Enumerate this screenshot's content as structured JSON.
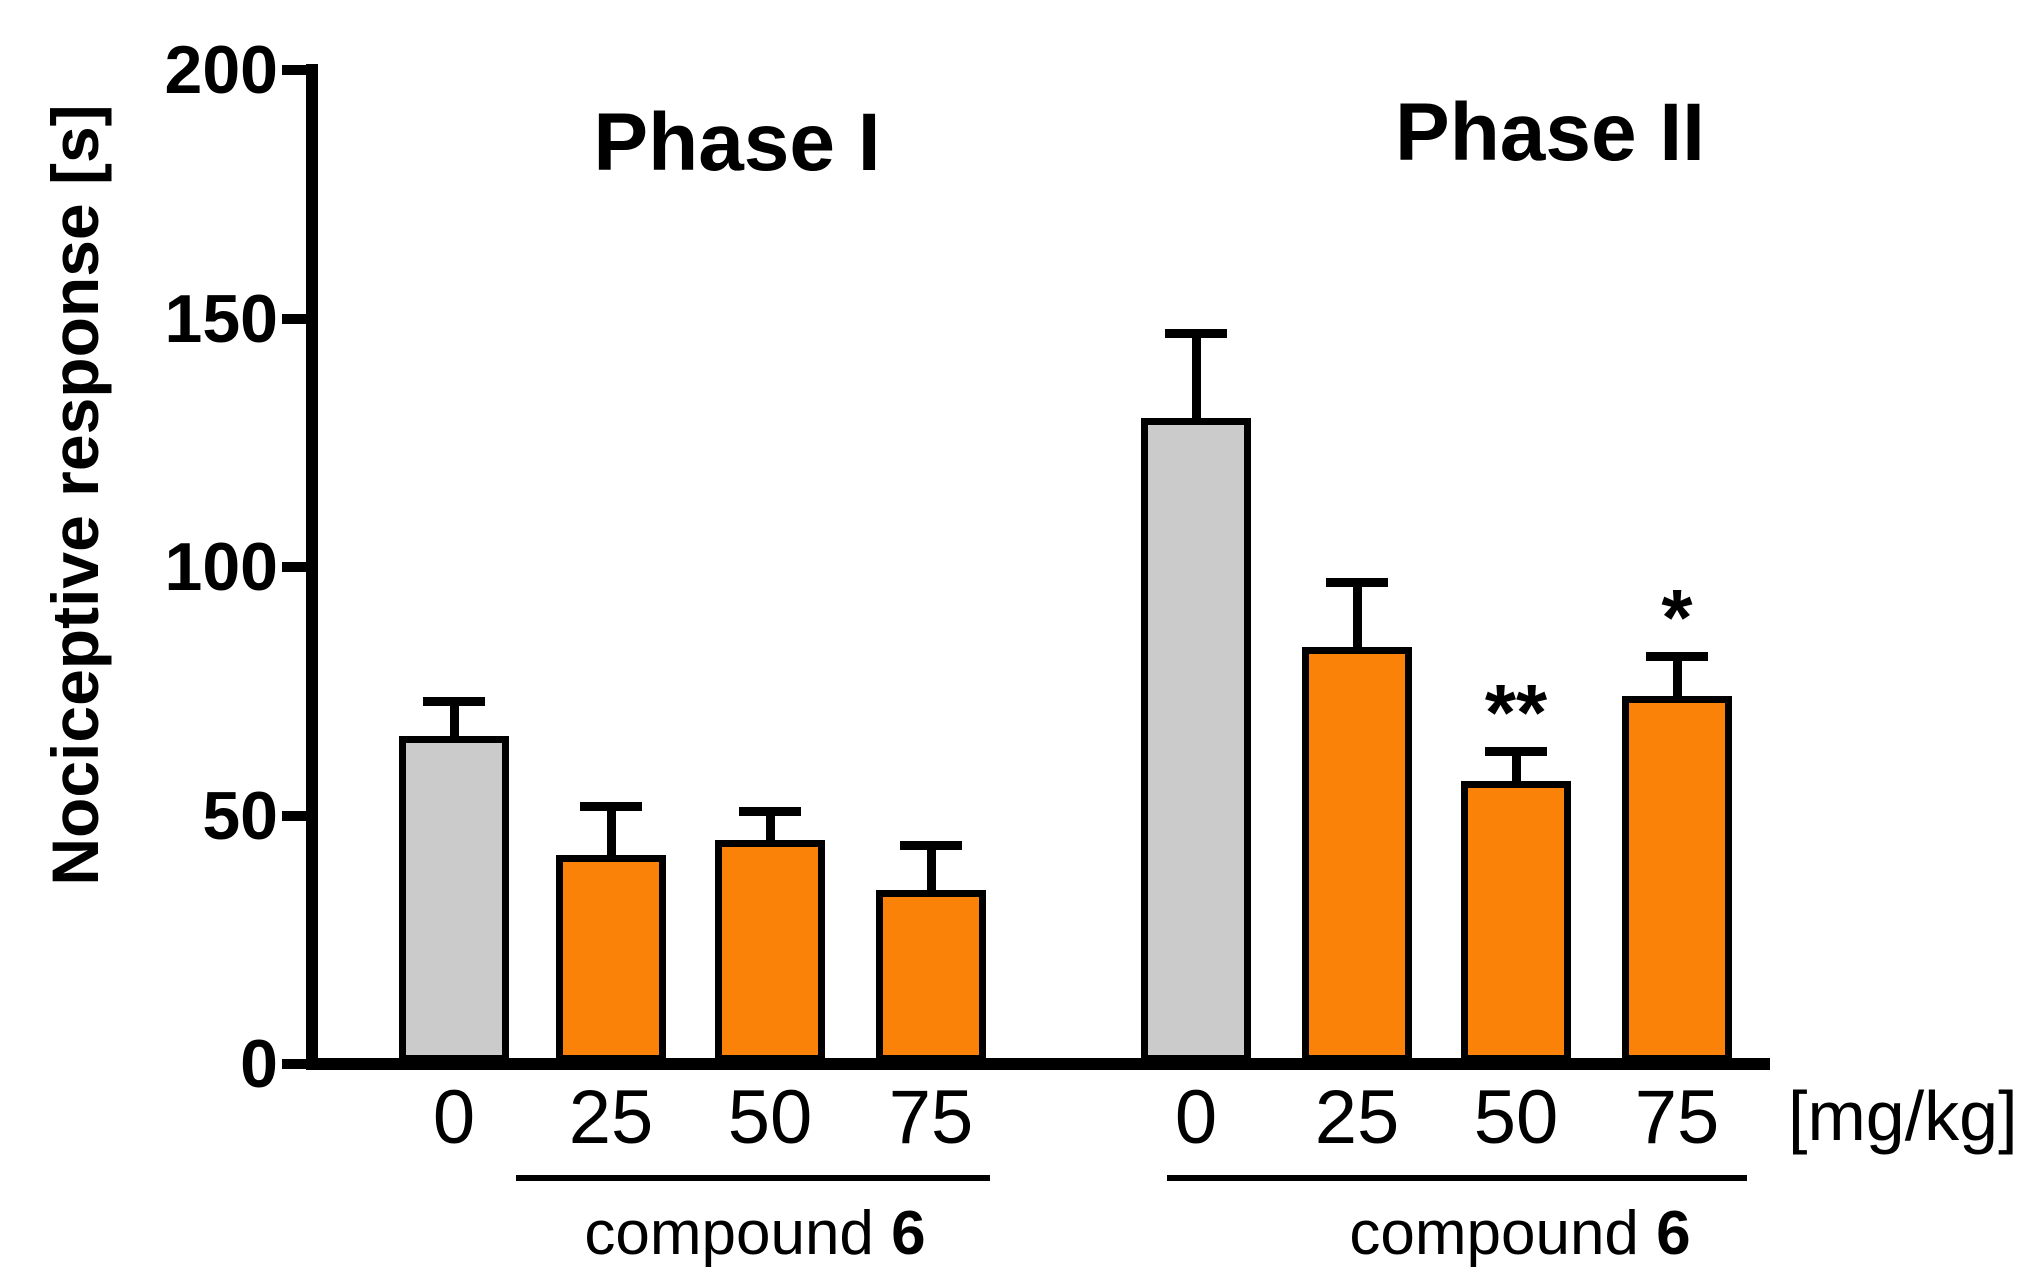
{
  "chart_data": {
    "type": "bar",
    "title": "",
    "ylabel": "Nociceptive response [s]",
    "x_unit_label": "[mg/kg]",
    "ylim": [
      0,
      200
    ],
    "yticks": [
      "0",
      "50",
      "100",
      "150",
      "200"
    ],
    "grid": false,
    "legend": null,
    "error_bars": "upper only, capped",
    "bar_style": {
      "control_color": "#CBCBCB",
      "treatment_color": "#FA8208",
      "outline_color": "#000000"
    },
    "groups": [
      {
        "name": "Phase I",
        "categories": [
          "0",
          "25",
          "50",
          "75"
        ],
        "values": [
          66,
          42,
          45,
          35
        ],
        "errors_plus": [
          7,
          10,
          6,
          9
        ],
        "significance": [
          "",
          "",
          "",
          ""
        ],
        "bar_roles": [
          "control",
          "treatment",
          "treatment",
          "treatment"
        ],
        "group_label_text": "compound",
        "group_label_bold": "6"
      },
      {
        "name": "Phase II",
        "categories": [
          "0",
          "25",
          "50",
          "75"
        ],
        "values": [
          130,
          84,
          57,
          74
        ],
        "errors_plus": [
          17,
          13,
          6,
          8
        ],
        "significance": [
          "",
          "",
          "**",
          "*"
        ],
        "bar_roles": [
          "control",
          "treatment",
          "treatment",
          "treatment"
        ],
        "group_label_text": "compound",
        "group_label_bold": "6"
      }
    ]
  }
}
